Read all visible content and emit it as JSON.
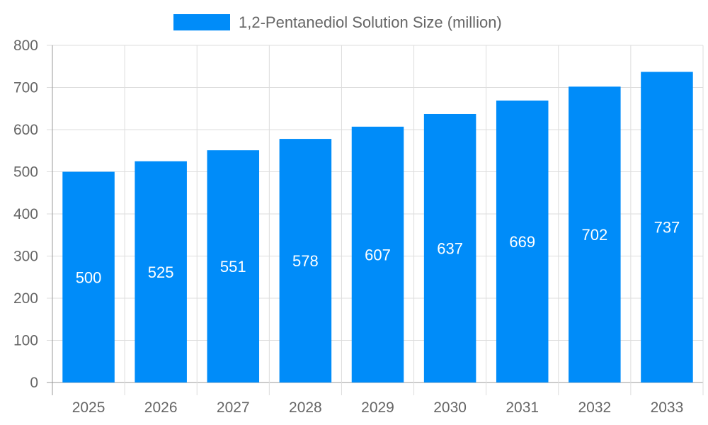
{
  "chart_data": {
    "type": "bar",
    "categories": [
      "2025",
      "2026",
      "2027",
      "2028",
      "2029",
      "2030",
      "2031",
      "2032",
      "2033"
    ],
    "series": [
      {
        "name": "1,2-Pentanediol Solution Size (million)",
        "values": [
          500,
          525,
          551,
          578,
          607,
          637,
          669,
          702,
          737
        ],
        "color": "#008cf9"
      }
    ],
    "ylim": [
      0,
      800
    ],
    "yticks": [
      0,
      100,
      200,
      300,
      400,
      500,
      600,
      700,
      800
    ],
    "grid": true,
    "legend_position": "top",
    "data_labels": true
  }
}
